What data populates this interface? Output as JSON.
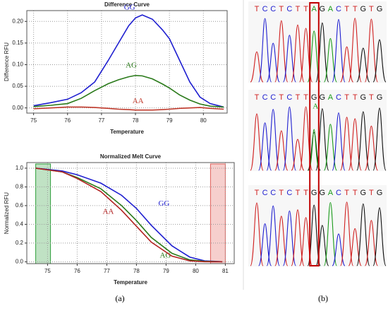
{
  "chart_data": [
    {
      "type": "line",
      "title": "Difference Curve",
      "xlabel": "Temperature",
      "ylabel": "Difference RFU",
      "xlim": [
        74.8,
        80.7
      ],
      "xticks": [
        75,
        76,
        77,
        78,
        79,
        80
      ],
      "ylim": [
        -0.012,
        0.225
      ],
      "yticks": [
        {
          "value": 0,
          "label": "0.00"
        },
        {
          "value": 0.05,
          "label": "0.05"
        },
        {
          "value": 0.1,
          "label": "0.10"
        },
        {
          "value": 0.15,
          "label": "0.15"
        },
        {
          "value": 0.2,
          "label": "0.20"
        }
      ],
      "grid": true,
      "x": [
        75,
        75.5,
        76,
        76.4,
        76.8,
        77.2,
        77.5,
        77.8,
        78,
        78.2,
        78.5,
        78.8,
        79,
        79.3,
        79.6,
        79.9,
        80.2,
        80.6
      ],
      "series": [
        {
          "name": "GG",
          "color": "#1f1fd0",
          "values": [
            0.005,
            0.012,
            0.02,
            0.035,
            0.06,
            0.11,
            0.15,
            0.19,
            0.208,
            0.215,
            0.205,
            0.18,
            0.16,
            0.11,
            0.06,
            0.025,
            0.01,
            0.002
          ]
        },
        {
          "name": "AG",
          "color": "#2a7a1a",
          "values": [
            0.003,
            0.006,
            0.01,
            0.022,
            0.04,
            0.056,
            0.065,
            0.072,
            0.075,
            0.074,
            0.067,
            0.055,
            0.046,
            0.03,
            0.018,
            0.009,
            0.004,
            0.002
          ]
        },
        {
          "name": "AA",
          "color": "#c0392b",
          "values": [
            -0.002,
            0,
            0.002,
            0.002,
            0.001,
            -0.001,
            -0.003,
            -0.004,
            -0.005,
            -0.005,
            -0.005,
            -0.004,
            -0.003,
            -0.001,
            0,
            0.001,
            -0.001,
            -0.003
          ]
        }
      ]
    },
    {
      "type": "line",
      "title": "Normalized Melt Curve",
      "xlabel": "Temperature",
      "ylabel": "Normalized RFU",
      "xlim": [
        74.3,
        81.3
      ],
      "xticks": [
        75,
        76,
        77,
        78,
        79,
        80,
        81
      ],
      "ylim": [
        -0.02,
        1.06
      ],
      "yticks": [
        {
          "value": 0,
          "label": "0.0"
        },
        {
          "value": 0.2,
          "label": "0.2"
        },
        {
          "value": 0.4,
          "label": "0.4"
        },
        {
          "value": 0.6,
          "label": "0.6"
        },
        {
          "value": 0.8,
          "label": "0.8"
        },
        {
          "value": 1,
          "label": "1.0"
        }
      ],
      "grid": true,
      "regions": [
        {
          "xlim": [
            74.6,
            75.1
          ],
          "color": "#2e9e3a"
        },
        {
          "xlim": [
            80.5,
            81
          ],
          "color": "#e0605a"
        }
      ],
      "x": [
        74.6,
        75.5,
        76,
        76.8,
        77.5,
        78,
        78.5,
        79.2,
        79.8,
        80.3,
        80.9
      ],
      "series": [
        {
          "name": "GG",
          "color": "#1f1fd0",
          "values": [
            1,
            0.97,
            0.93,
            0.84,
            0.71,
            0.57,
            0.39,
            0.17,
            0.05,
            0.01,
            0
          ]
        },
        {
          "name": "AG",
          "color": "#2a7a1a",
          "values": [
            1,
            0.96,
            0.9,
            0.78,
            0.6,
            0.44,
            0.26,
            0.09,
            0.02,
            0.005,
            0
          ]
        },
        {
          "name": "AA",
          "color": "#b22222",
          "values": [
            1,
            0.96,
            0.89,
            0.75,
            0.55,
            0.38,
            0.21,
            0.06,
            0.01,
            0,
            0
          ]
        }
      ]
    }
  ],
  "panel_labels": [
    "(a)",
    "(b)"
  ],
  "chromatograms": [
    {
      "sequence": "TCCTCTTAGACTTGTG"
    },
    {
      "sequence": "TCCTCTTGGACTTGTG",
      "overlay": "A"
    },
    {
      "sequence": "TCCTCTTGGACTTGTG"
    }
  ]
}
